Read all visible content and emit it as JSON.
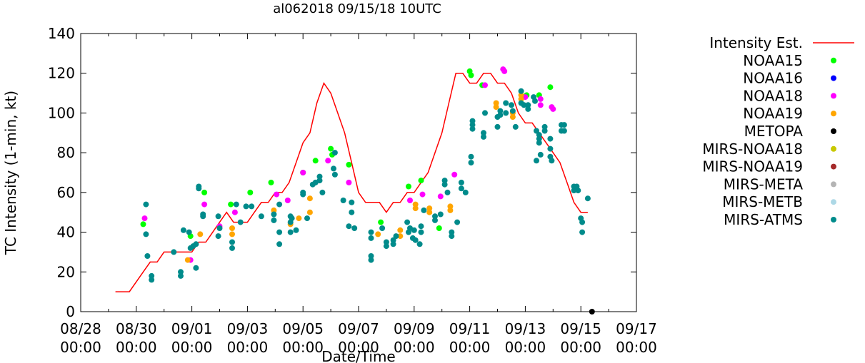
{
  "chart_data": {
    "type": "scatter",
    "title": "al062018 09/15/18 10UTC",
    "xlabel": "Date/Time",
    "ylabel": "TC Intensity (1-min, kt)",
    "ylim": [
      0,
      140
    ],
    "yticks": [
      0,
      20,
      40,
      60,
      80,
      100,
      120,
      140
    ],
    "xlim": [
      0,
      20
    ],
    "xticks": [
      {
        "x": 0,
        "date": "08/28",
        "time": "00:00"
      },
      {
        "x": 2,
        "date": "08/30",
        "time": "00:00"
      },
      {
        "x": 4,
        "date": "09/01",
        "time": "00:00"
      },
      {
        "x": 6,
        "date": "09/03",
        "time": "00:00"
      },
      {
        "x": 8,
        "date": "09/05",
        "time": "00:00"
      },
      {
        "x": 10,
        "date": "09/07",
        "time": "00:00"
      },
      {
        "x": 12,
        "date": "09/09",
        "time": "00:00"
      },
      {
        "x": 14,
        "date": "09/11",
        "time": "00:00"
      },
      {
        "x": 16,
        "date": "09/13",
        "time": "00:00"
      },
      {
        "x": 18,
        "date": "09/15",
        "time": "00:00"
      },
      {
        "x": 20,
        "date": "09/17",
        "time": "00:00"
      }
    ],
    "x_units": "days since 08/28 00:00",
    "legend_position": "right",
    "intensity_est": {
      "name": "Intensity Est.",
      "color": "#ff0000",
      "x": [
        1.25,
        1.75,
        2.25,
        2.5,
        2.75,
        3.0,
        3.25,
        3.5,
        3.75,
        4.0,
        4.25,
        4.5,
        4.75,
        5.0,
        5.25,
        5.5,
        5.75,
        6.0,
        6.25,
        6.5,
        6.75,
        7.0,
        7.25,
        7.5,
        7.75,
        8.0,
        8.25,
        8.5,
        8.75,
        9.0,
        9.25,
        9.5,
        9.75,
        10.0,
        10.25,
        10.5,
        10.75,
        11.0,
        11.25,
        11.5,
        11.75,
        12.0,
        12.25,
        12.5,
        12.75,
        13.0,
        13.25,
        13.5,
        13.75,
        14.0,
        14.25,
        14.5,
        14.75,
        15.0,
        15.25,
        15.5,
        15.75,
        16.0,
        16.25,
        16.5,
        16.75,
        17.0,
        17.25,
        17.5,
        17.75,
        18.0,
        18.25
      ],
      "y": [
        10,
        10,
        20,
        25,
        25,
        30,
        30,
        30,
        30,
        30,
        35,
        35,
        40,
        45,
        50,
        45,
        45,
        45,
        50,
        55,
        55,
        60,
        60,
        65,
        75,
        85,
        90,
        105,
        115,
        110,
        100,
        90,
        75,
        60,
        55,
        55,
        55,
        50,
        55,
        55,
        60,
        60,
        65,
        70,
        80,
        90,
        105,
        120,
        120,
        115,
        115,
        120,
        120,
        115,
        115,
        110,
        100,
        95,
        95,
        90,
        85,
        80,
        75,
        65,
        55,
        50,
        50
      ]
    },
    "series": [
      {
        "name": "NOAA15",
        "color": "#00ff00",
        "points": [
          [
            2.25,
            44
          ],
          [
            3.95,
            38
          ],
          [
            4.45,
            60
          ],
          [
            5.4,
            54
          ],
          [
            6.1,
            60
          ],
          [
            6.85,
            65
          ],
          [
            8.0,
            70
          ],
          [
            8.45,
            76
          ],
          [
            9.0,
            82
          ],
          [
            9.05,
            79
          ],
          [
            9.65,
            74
          ],
          [
            10.8,
            45
          ],
          [
            11.8,
            63
          ],
          [
            12.25,
            66
          ],
          [
            12.9,
            42
          ],
          [
            14.0,
            121
          ],
          [
            14.05,
            119
          ],
          [
            14.45,
            114
          ],
          [
            16.05,
            109
          ],
          [
            16.5,
            109
          ],
          [
            16.9,
            113
          ]
        ]
      },
      {
        "name": "NOAA16",
        "color": "#0000ff",
        "points": []
      },
      {
        "name": "NOAA18",
        "color": "#ff00ff",
        "points": [
          [
            2.3,
            47
          ],
          [
            3.95,
            26
          ],
          [
            4.45,
            54
          ],
          [
            5.0,
            43
          ],
          [
            5.55,
            50
          ],
          [
            7.05,
            59
          ],
          [
            7.45,
            56
          ],
          [
            8.0,
            70
          ],
          [
            8.9,
            76
          ],
          [
            9.65,
            65
          ],
          [
            11.85,
            56
          ],
          [
            12.3,
            59
          ],
          [
            12.95,
            58
          ],
          [
            13.45,
            69
          ],
          [
            14.55,
            114
          ],
          [
            15.2,
            122
          ],
          [
            15.25,
            121
          ],
          [
            16.0,
            108
          ],
          [
            16.55,
            104
          ],
          [
            16.55,
            107
          ],
          [
            16.95,
            103
          ],
          [
            17.0,
            102
          ]
        ]
      },
      {
        "name": "NOAA19",
        "color": "#ffa500",
        "points": [
          [
            3.85,
            26
          ],
          [
            4.3,
            39
          ],
          [
            5.45,
            42
          ],
          [
            5.45,
            39
          ],
          [
            6.95,
            51
          ],
          [
            7.55,
            44
          ],
          [
            7.85,
            47
          ],
          [
            8.25,
            57
          ],
          [
            8.25,
            50
          ],
          [
            10.7,
            39
          ],
          [
            11.5,
            41
          ],
          [
            11.5,
            38
          ],
          [
            12.05,
            54
          ],
          [
            12.05,
            52
          ],
          [
            12.55,
            52
          ],
          [
            12.55,
            50
          ],
          [
            13.3,
            53
          ],
          [
            13.3,
            51
          ],
          [
            14.95,
            105
          ],
          [
            14.95,
            103
          ],
          [
            15.55,
            100
          ],
          [
            15.55,
            98
          ],
          [
            15.85,
            109
          ],
          [
            15.85,
            107
          ]
        ]
      },
      {
        "name": "METOPA",
        "color": "#000000",
        "points": [
          [
            18.4,
            0
          ]
        ]
      },
      {
        "name": "MIRS-NOAA18",
        "color": "#c8c800",
        "points": []
      },
      {
        "name": "MIRS-NOAA19",
        "color": "#a52a2a",
        "points": []
      },
      {
        "name": "MIRS-META",
        "color": "#b4b4b4",
        "points": []
      },
      {
        "name": "MIRS-METB",
        "color": "#add8e6",
        "points": []
      },
      {
        "name": "MIRS-ATMS",
        "color": "#008b8b",
        "points": [
          [
            2.35,
            54
          ],
          [
            2.35,
            39
          ],
          [
            2.4,
            28
          ],
          [
            2.55,
            18
          ],
          [
            2.55,
            16
          ],
          [
            3.35,
            30
          ],
          [
            3.6,
            20
          ],
          [
            3.6,
            18
          ],
          [
            3.7,
            41
          ],
          [
            3.9,
            40
          ],
          [
            3.95,
            32
          ],
          [
            4.05,
            33
          ],
          [
            4.15,
            22
          ],
          [
            4.15,
            34
          ],
          [
            4.25,
            63
          ],
          [
            4.25,
            62
          ],
          [
            4.4,
            49
          ],
          [
            4.4,
            48
          ],
          [
            4.95,
            48
          ],
          [
            4.95,
            38
          ],
          [
            5.0,
            42
          ],
          [
            5.45,
            35
          ],
          [
            5.45,
            32
          ],
          [
            5.6,
            54
          ],
          [
            5.75,
            45
          ],
          [
            5.95,
            53
          ],
          [
            6.15,
            53
          ],
          [
            6.5,
            48
          ],
          [
            6.95,
            49
          ],
          [
            6.95,
            46
          ],
          [
            7.15,
            54
          ],
          [
            7.15,
            40
          ],
          [
            7.15,
            34
          ],
          [
            7.55,
            48
          ],
          [
            7.55,
            45
          ],
          [
            7.55,
            40
          ],
          [
            7.6,
            47
          ],
          [
            7.75,
            41
          ],
          [
            8.0,
            60
          ],
          [
            8.0,
            59
          ],
          [
            8.15,
            47
          ],
          [
            8.35,
            64
          ],
          [
            8.45,
            65
          ],
          [
            8.6,
            68
          ],
          [
            8.6,
            66
          ],
          [
            8.7,
            60
          ],
          [
            9.1,
            72
          ],
          [
            9.15,
            80
          ],
          [
            9.15,
            69
          ],
          [
            9.45,
            56
          ],
          [
            9.65,
            43
          ],
          [
            9.75,
            55
          ],
          [
            9.75,
            50
          ],
          [
            9.85,
            42
          ],
          [
            10.45,
            40
          ],
          [
            10.45,
            37
          ],
          [
            10.45,
            28
          ],
          [
            10.45,
            26
          ],
          [
            10.85,
            42
          ],
          [
            11.0,
            35
          ],
          [
            11.0,
            33
          ],
          [
            11.25,
            36
          ],
          [
            11.25,
            34
          ],
          [
            11.35,
            38
          ],
          [
            11.75,
            45
          ],
          [
            11.8,
            40
          ],
          [
            11.85,
            42
          ],
          [
            11.95,
            37
          ],
          [
            12.0,
            41
          ],
          [
            12.05,
            36
          ],
          [
            12.2,
            34
          ],
          [
            12.25,
            43
          ],
          [
            12.25,
            40
          ],
          [
            12.35,
            51
          ],
          [
            12.75,
            48
          ],
          [
            12.75,
            46
          ],
          [
            12.95,
            49
          ],
          [
            13.1,
            66
          ],
          [
            13.1,
            64
          ],
          [
            13.2,
            60
          ],
          [
            13.35,
            40
          ],
          [
            13.35,
            38
          ],
          [
            13.55,
            45
          ],
          [
            13.7,
            65
          ],
          [
            13.7,
            62
          ],
          [
            13.85,
            60
          ],
          [
            14.05,
            78
          ],
          [
            14.05,
            75
          ],
          [
            14.1,
            96
          ],
          [
            14.1,
            94
          ],
          [
            14.1,
            92
          ],
          [
            14.5,
            90
          ],
          [
            14.5,
            88
          ],
          [
            14.55,
            100
          ],
          [
            15.0,
            98
          ],
          [
            15.0,
            93
          ],
          [
            15.3,
            105
          ],
          [
            15.5,
            104
          ],
          [
            15.55,
            101
          ],
          [
            15.65,
            93
          ],
          [
            15.85,
            111
          ],
          [
            15.85,
            105
          ],
          [
            16.1,
            104
          ],
          [
            16.1,
            102
          ],
          [
            16.4,
            91
          ],
          [
            16.4,
            76
          ],
          [
            16.5,
            89
          ],
          [
            16.5,
            87
          ],
          [
            16.5,
            85
          ],
          [
            16.55,
            79
          ],
          [
            16.7,
            93
          ],
          [
            16.7,
            91
          ],
          [
            16.9,
            87
          ],
          [
            16.9,
            82
          ],
          [
            16.9,
            78
          ],
          [
            16.95,
            76
          ],
          [
            17.3,
            94
          ],
          [
            17.3,
            91
          ],
          [
            17.4,
            94
          ],
          [
            17.4,
            91
          ],
          [
            17.75,
            63
          ],
          [
            17.75,
            61
          ],
          [
            17.8,
            62
          ],
          [
            17.85,
            63
          ],
          [
            17.9,
            61
          ],
          [
            18.0,
            47
          ],
          [
            18.05,
            45
          ],
          [
            18.05,
            40
          ],
          [
            18.25,
            57
          ],
          [
            16.3,
            108
          ],
          [
            16.35,
            106
          ],
          [
            15.95,
            104
          ],
          [
            15.1,
            101
          ],
          [
            15.1,
            99
          ],
          [
            15.3,
            100
          ]
        ]
      }
    ]
  }
}
